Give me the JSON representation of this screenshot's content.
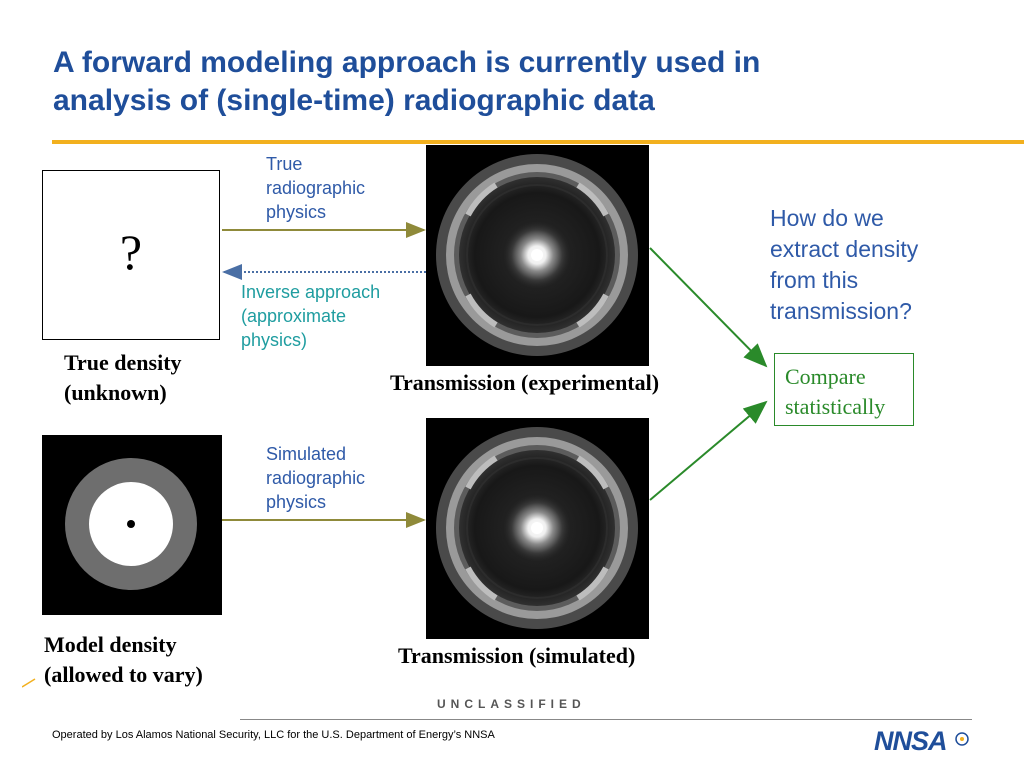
{
  "slide": {
    "title_lines": [
      "A forward modeling approach is currently used in",
      "analysis of (single-time) radiographic data"
    ]
  },
  "true_density": {
    "box_symbol": "?",
    "caption_lines": [
      "True density",
      "(unknown)"
    ]
  },
  "model_density": {
    "caption_lines": [
      "Model density",
      "(allowed to vary)"
    ]
  },
  "arrows": {
    "true_physics_lines": [
      "True",
      "radiographic",
      "physics"
    ],
    "inverse_lines": [
      "Inverse approach",
      "(approximate",
      "physics)"
    ],
    "simulated_physics_lines": [
      "Simulated",
      "radiographic",
      "physics"
    ]
  },
  "transmissions": {
    "experimental_caption": "Transmission (experimental)",
    "simulated_caption": "Transmission (simulated)"
  },
  "question_lines": [
    "How do we",
    "extract density",
    "from this",
    "transmission?"
  ],
  "compare_lines": [
    "Compare",
    "statistically"
  ],
  "footer": {
    "classification": "UNCLASSIFIED",
    "operated_by": "Operated by Los Alamos National Security, LLC for the U.S. Department of Energy’s NNSA",
    "logo_text": "NNSA"
  },
  "colors": {
    "title": "#1f4e9a",
    "gold_rule": "#f2b01e",
    "arrow_olive": "#8f8a3a",
    "arrow_inverse": "#4a6fa5",
    "green": "#2a8a2a",
    "label_blue": "#2f5aa8",
    "label_teal": "#1f9da0"
  }
}
